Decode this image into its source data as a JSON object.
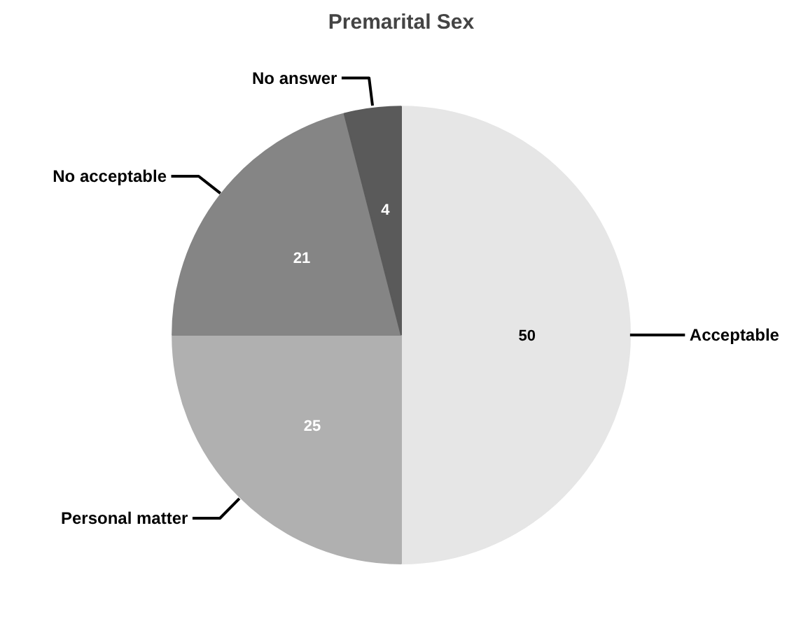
{
  "chart_data": {
    "type": "pie",
    "title": "Premarital Sex",
    "categories": [
      "Acceptable",
      "Personal matter",
      "No acceptable",
      "No answer"
    ],
    "values": [
      50,
      25,
      21,
      4
    ],
    "colors": [
      "#e6e6e6",
      "#b0b0b0",
      "#858585",
      "#5a5a5a"
    ],
    "data_labels": true
  }
}
